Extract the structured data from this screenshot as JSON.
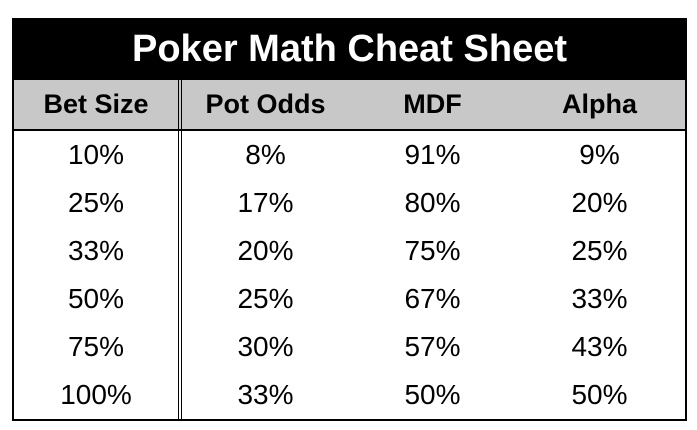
{
  "table": {
    "title": "Poker Math Cheat Sheet",
    "header": [
      "Bet Size",
      "Pot Odds",
      "MDF",
      "Alpha"
    ],
    "rows": [
      [
        "10%",
        "8%",
        "91%",
        "9%"
      ],
      [
        "25%",
        "17%",
        "80%",
        "20%"
      ],
      [
        "33%",
        "20%",
        "75%",
        "25%"
      ],
      [
        "50%",
        "25%",
        "67%",
        "33%"
      ],
      [
        "75%",
        "30%",
        "57%",
        "43%"
      ],
      [
        "100%",
        "33%",
        "50%",
        "50%"
      ]
    ]
  }
}
